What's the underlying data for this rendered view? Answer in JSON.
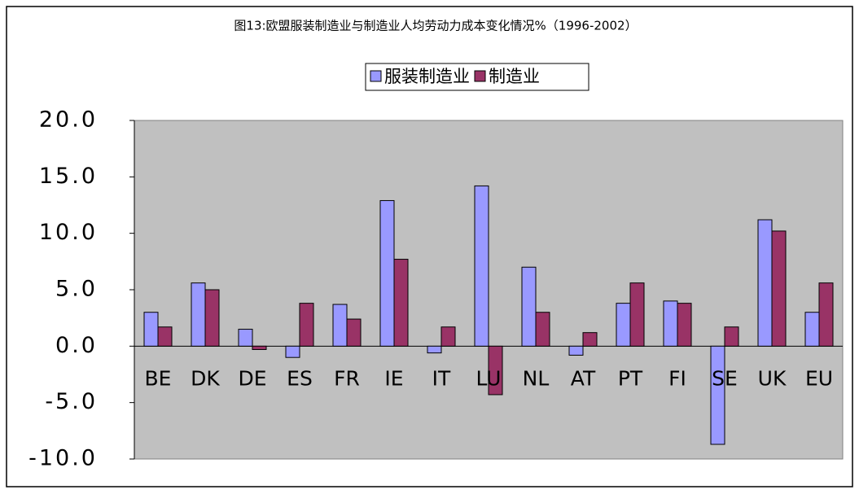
{
  "chart_data": {
    "type": "bar",
    "title": "图13:欧盟服装制造业与制造业人均劳动力成本变化情况%（1996-2002）",
    "categories": [
      "BE",
      "DK",
      "DE",
      "ES",
      "FR",
      "IE",
      "IT",
      "LU",
      "NL",
      "AT",
      "PT",
      "FI",
      "SE",
      "UK",
      "EU"
    ],
    "series": [
      {
        "name": "服装制造业",
        "color": "#9999ff",
        "values": [
          3.0,
          5.6,
          1.5,
          -1.0,
          3.7,
          12.9,
          -0.6,
          14.2,
          7.0,
          -0.8,
          3.8,
          4.0,
          -8.7,
          11.2,
          3.0
        ]
      },
      {
        "name": "制造业",
        "color": "#993366",
        "values": [
          1.7,
          5.0,
          -0.3,
          3.8,
          2.4,
          7.7,
          1.7,
          -4.3,
          3.0,
          1.2,
          5.6,
          3.8,
          1.7,
          10.2,
          5.6
        ]
      }
    ],
    "ylim": [
      -10,
      20
    ],
    "yticks": [
      {
        "value": -10,
        "label": "-10.0"
      },
      {
        "value": -5,
        "label": "-5.0"
      },
      {
        "value": 0,
        "label": "0.0"
      },
      {
        "value": 5,
        "label": "5.0"
      },
      {
        "value": 10,
        "label": "10.0"
      },
      {
        "value": 15,
        "label": "15.0"
      },
      {
        "value": 20,
        "label": "20.0"
      }
    ],
    "legend": "top"
  }
}
